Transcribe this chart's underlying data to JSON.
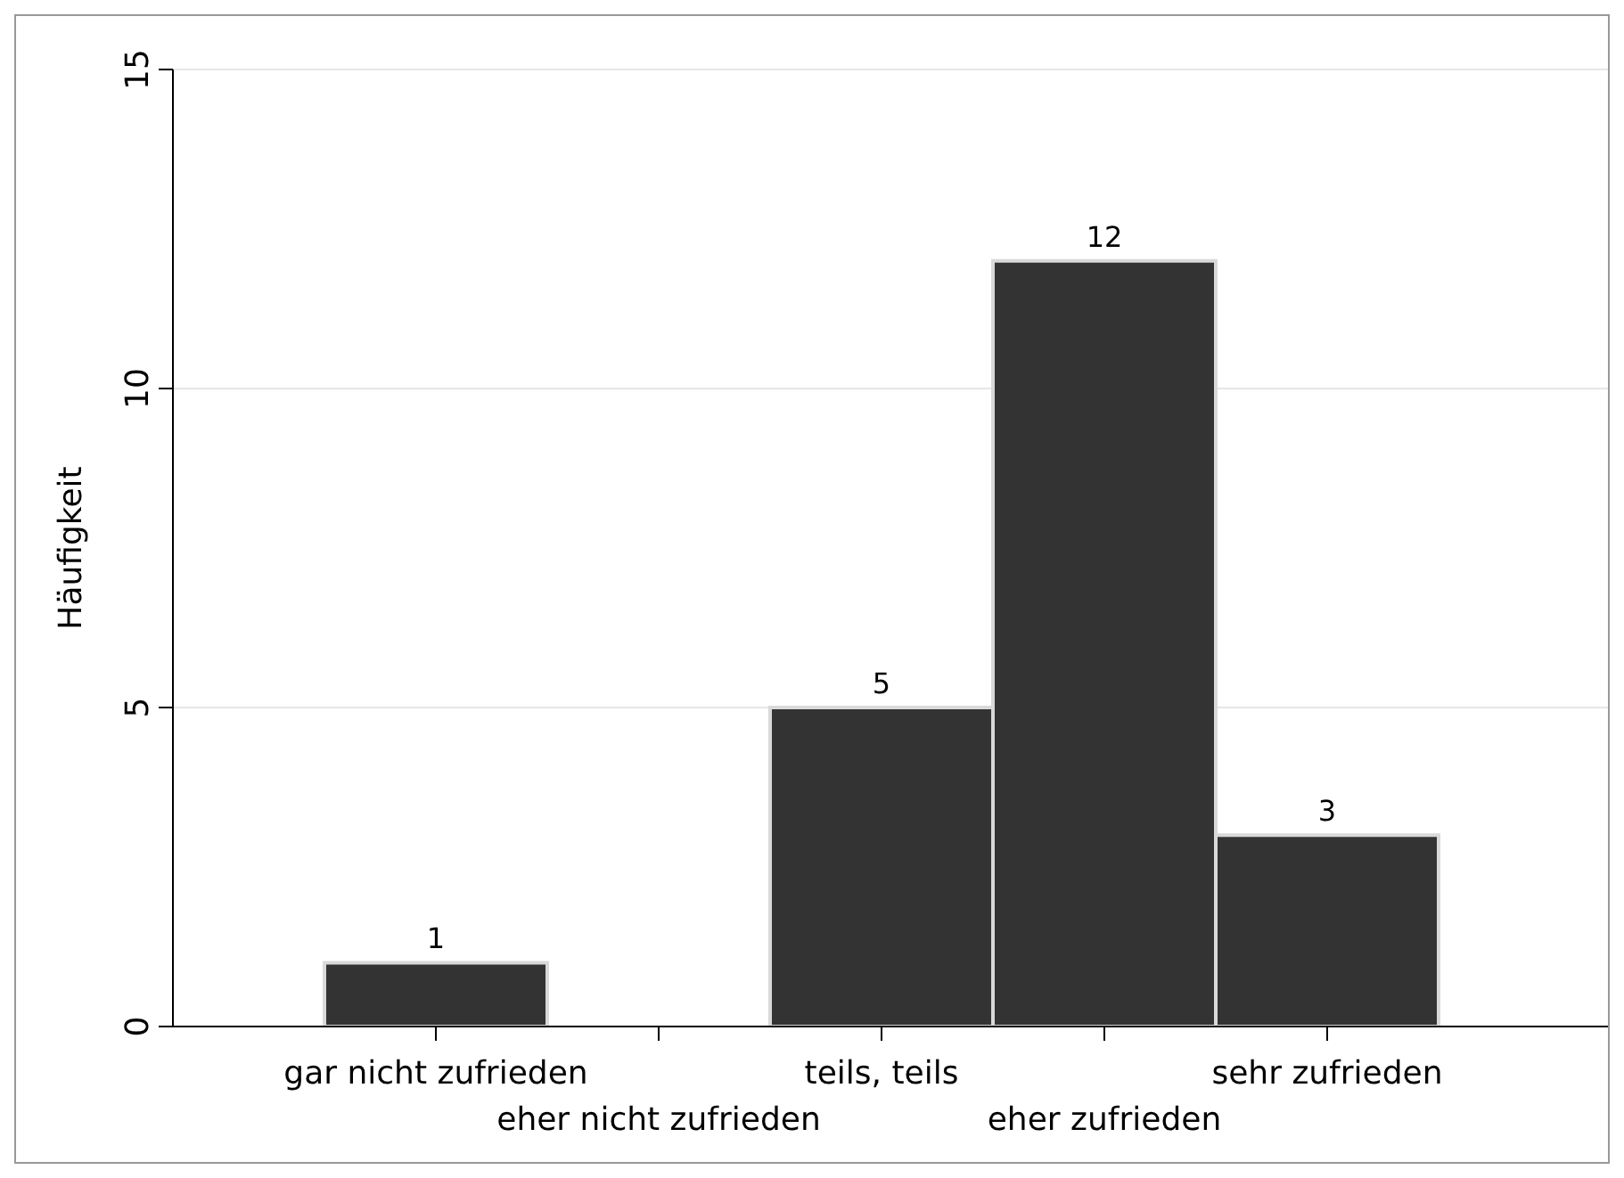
{
  "chart_data": {
    "type": "bar",
    "ylabel": "Häufigkeit",
    "categories": [
      "gar nicht zufrieden",
      "eher nicht zufrieden",
      "teils, teils",
      "eher zufrieden",
      "sehr zufrieden"
    ],
    "values": [
      1,
      0,
      5,
      12,
      3
    ],
    "value_labels": [
      "1",
      null,
      "5",
      "12",
      "3"
    ],
    "color": "#333333",
    "ylim": [
      0,
      15
    ],
    "yticks": [
      0,
      5,
      10,
      15
    ],
    "grid": "y"
  }
}
